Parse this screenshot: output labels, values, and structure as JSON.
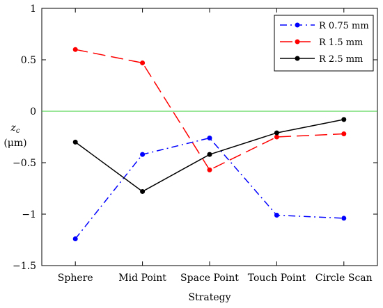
{
  "chart_data": {
    "type": "line",
    "title": "",
    "xlabel": "Strategy",
    "ylabel_main": "z",
    "ylabel_sub": "c",
    "ylabel_unit": "(μm)",
    "categories": [
      "Sphere",
      "Mid Point",
      "Space Point",
      "Touch Point",
      "Circle Scan"
    ],
    "ylim": [
      -1.5,
      1
    ],
    "yticks": [
      1,
      0.5,
      0,
      -0.5,
      -1,
      -1.5
    ],
    "ytick_labels": [
      "1",
      "0.5",
      "0",
      "−0.5",
      "−1",
      "−1.5"
    ],
    "reference_line": {
      "y": 0,
      "color": "#33cc33"
    },
    "legend_position": "top-right",
    "grid": false,
    "series": [
      {
        "name": "R 0.75 mm",
        "color": "#0000ff",
        "linestyle": "dash-dot",
        "values": [
          -1.24,
          -0.42,
          -0.26,
          -1.01,
          -1.04
        ]
      },
      {
        "name": "R 1.5 mm",
        "color": "#ff0000",
        "linestyle": "dashed",
        "values": [
          0.6,
          0.47,
          -0.57,
          -0.25,
          -0.22
        ]
      },
      {
        "name": "R 2.5 mm",
        "color": "#000000",
        "linestyle": "solid",
        "values": [
          -0.3,
          -0.78,
          -0.42,
          -0.21,
          -0.08
        ]
      }
    ]
  }
}
